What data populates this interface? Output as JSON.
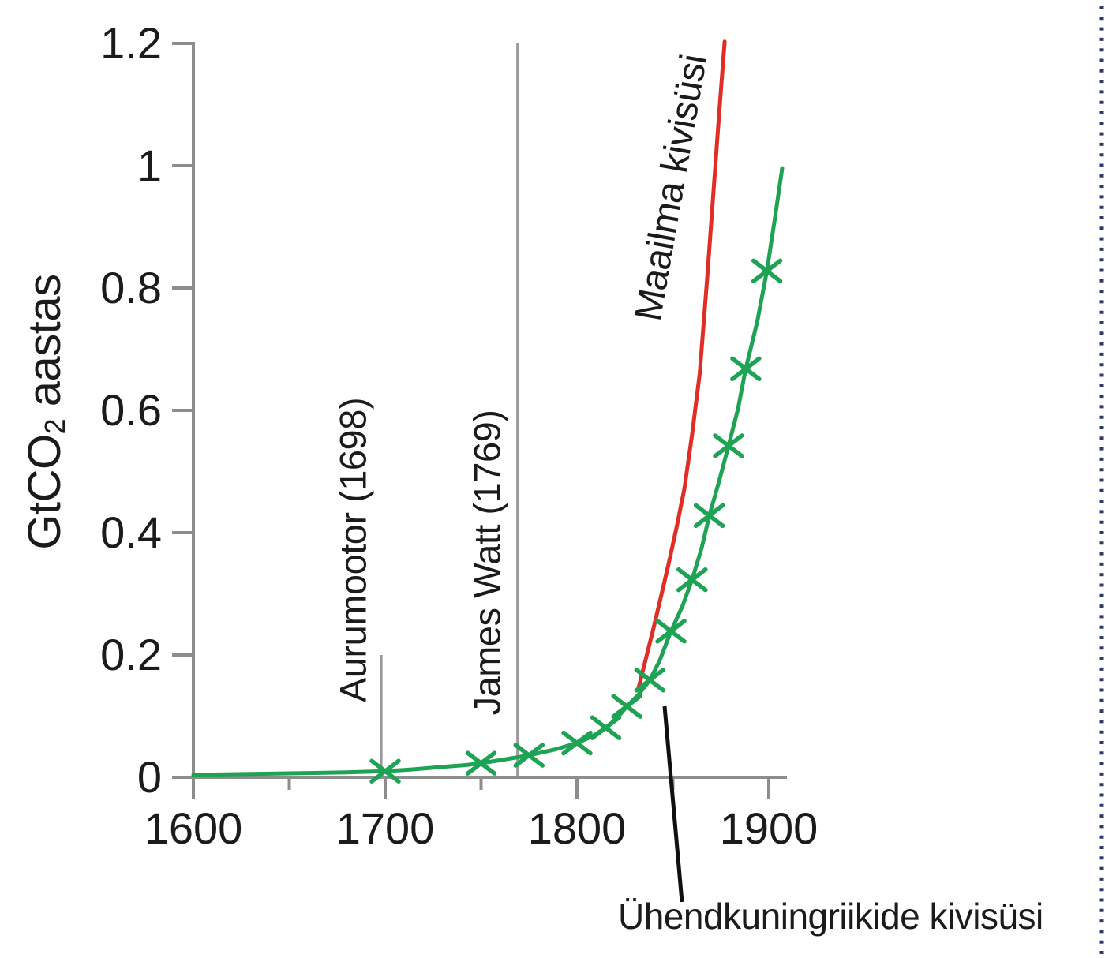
{
  "figure": {
    "colors": {
      "axis": "#8d8d8d",
      "event_line": "#9a9a9a",
      "uk_series": "#1ea355",
      "world_series": "#e02d26",
      "leader_line": "#101010",
      "text": "#1b1b1b",
      "edge_dash": "#2e3a66"
    },
    "ylabel_parts": {
      "prefix": "GtCO",
      "sub": "2",
      "suffix": " aastas"
    }
  },
  "chart_data": {
    "type": "line",
    "title": "",
    "xlabel": "",
    "ylabel": "GtCO2 aastas",
    "xlim": [
      1600,
      1910
    ],
    "ylim": [
      0,
      1.2
    ],
    "grid": false,
    "legend_position": "inline-annotations",
    "x_ticks_major": [
      1600,
      1700,
      1800,
      1900
    ],
    "x_ticks_minor": [
      1650,
      1750,
      1850
    ],
    "x_tick_labels": [
      "1600",
      "1700",
      "1800",
      "1900"
    ],
    "y_ticks": [
      0,
      0.2,
      0.4,
      0.6,
      0.8,
      1,
      1.2
    ],
    "y_tick_labels_top_down": [
      "1.2",
      "1",
      "0.8",
      "0.6",
      "0.4",
      "0.2",
      "0"
    ],
    "series": [
      {
        "name": "Ühendkuningriikide kivisüsi",
        "color": "#1ea355",
        "marker": "x",
        "x": [
          1600,
          1620,
          1640,
          1660,
          1680,
          1700,
          1715,
          1730,
          1742,
          1750,
          1762,
          1775,
          1788,
          1800,
          1808,
          1815,
          1821,
          1826,
          1832,
          1838,
          1843,
          1849,
          1855,
          1860,
          1865,
          1869,
          1874,
          1879,
          1884,
          1888,
          1894,
          1899,
          1903,
          1907
        ],
        "y": [
          0.004,
          0.005,
          0.006,
          0.007,
          0.008,
          0.01,
          0.013,
          0.017,
          0.02,
          0.023,
          0.029,
          0.036,
          0.045,
          0.056,
          0.067,
          0.081,
          0.097,
          0.116,
          0.135,
          0.159,
          0.19,
          0.239,
          0.28,
          0.323,
          0.375,
          0.428,
          0.483,
          0.542,
          0.603,
          0.668,
          0.745,
          0.828,
          0.91,
          0.996
        ],
        "marker_points": [
          [
            1700,
            0.01
          ],
          [
            1750,
            0.023
          ],
          [
            1775,
            0.036
          ],
          [
            1800,
            0.056
          ],
          [
            1815,
            0.081
          ],
          [
            1826,
            0.116
          ],
          [
            1838,
            0.159
          ],
          [
            1849,
            0.239
          ],
          [
            1860,
            0.323
          ],
          [
            1869,
            0.428
          ],
          [
            1879,
            0.542
          ],
          [
            1888,
            0.668
          ],
          [
            1899,
            0.828
          ]
        ]
      },
      {
        "name": "Maailma kivisüsi",
        "color": "#e02d26",
        "marker": null,
        "x": [
          1832,
          1836,
          1840,
          1844,
          1848,
          1852,
          1856,
          1860,
          1864,
          1868,
          1871,
          1874,
          1877
        ],
        "y": [
          0.145,
          0.195,
          0.245,
          0.298,
          0.352,
          0.41,
          0.472,
          0.56,
          0.66,
          0.82,
          0.95,
          1.08,
          1.203
        ]
      }
    ],
    "annotations": [
      {
        "text": "Aurumootor (1698)",
        "year": 1698,
        "line_top_value": 0.2
      },
      {
        "text": "James Watt (1769)",
        "year": 1769,
        "line_top_value": 1.2
      },
      {
        "text": "Maailma kivisüsi"
      },
      {
        "text": "Ühendkuningriikide kivisüsi"
      }
    ]
  }
}
